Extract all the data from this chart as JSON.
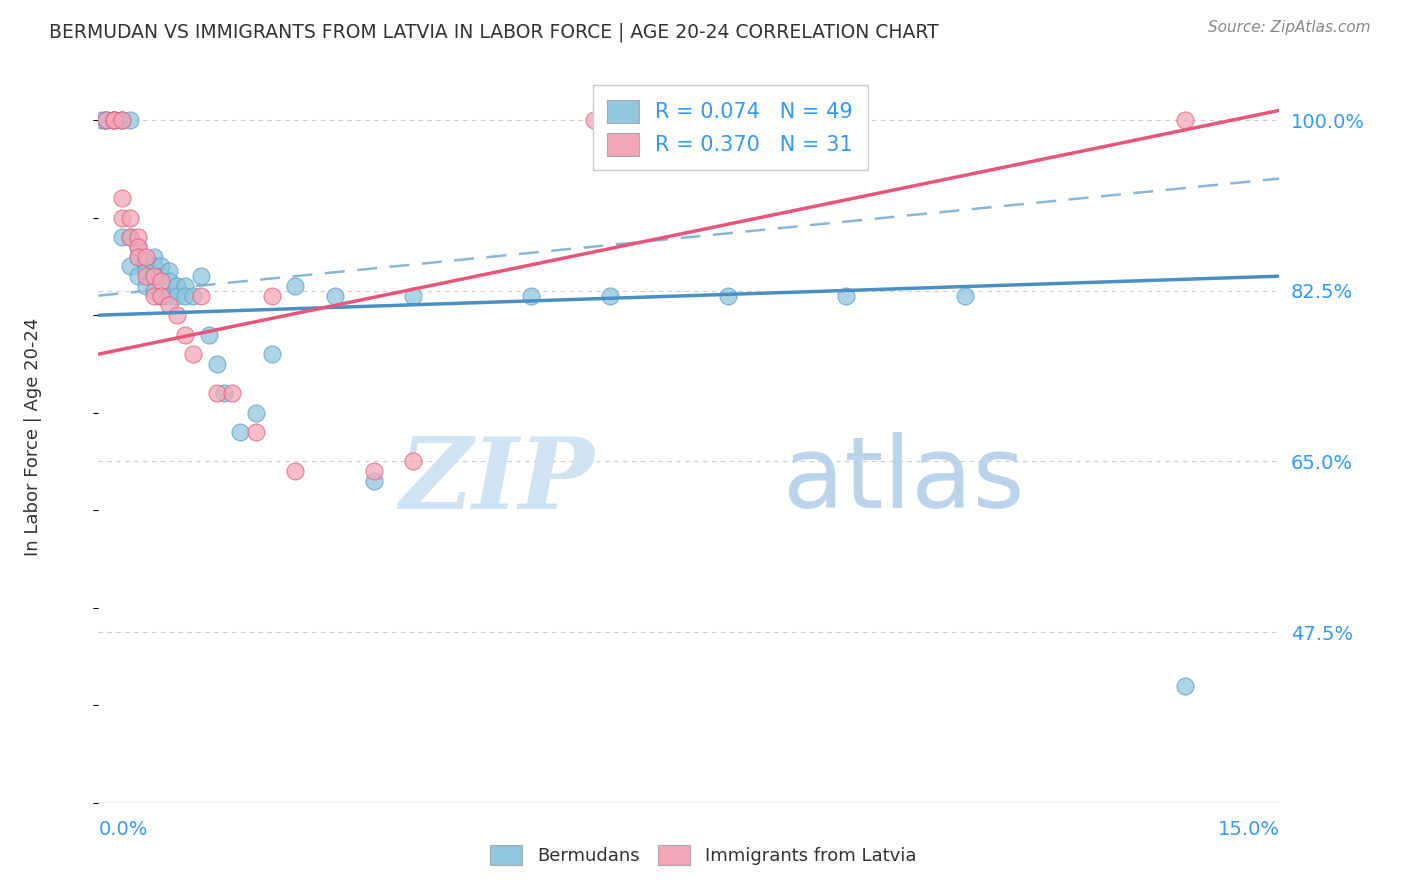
{
  "title": "BERMUDAN VS IMMIGRANTS FROM LATVIA IN LABOR FORCE | AGE 20-24 CORRELATION CHART",
  "source": "Source: ZipAtlas.com",
  "ylabel": "In Labor Force | Age 20-24",
  "xlim": [
    0.0,
    0.15
  ],
  "ylim": [
    0.3,
    1.05
  ],
  "yticks_right": [
    0.475,
    0.65,
    0.825,
    1.0
  ],
  "ytick_right_labels": [
    "47.5%",
    "65.0%",
    "82.5%",
    "100.0%"
  ],
  "blue_color": "#92c5de",
  "pink_color": "#f4a6b8",
  "blue_edge_color": "#5b9ec9",
  "pink_edge_color": "#e0607a",
  "blue_line_color": "#4a90c4",
  "pink_line_color": "#e8547a",
  "legend_text_blue": "R = 0.074   N = 49",
  "legend_text_pink": "R = 0.370   N = 31",
  "legend_label_blue": "Bermudans",
  "legend_label_pink": "Immigrants from Latvia",
  "watermark_zip": "ZIP",
  "watermark_atlas": "atlas",
  "blue_scatter_x": [
    0.0005,
    0.001,
    0.001,
    0.002,
    0.002,
    0.003,
    0.003,
    0.003,
    0.004,
    0.004,
    0.004,
    0.005,
    0.005,
    0.005,
    0.006,
    0.006,
    0.006,
    0.007,
    0.007,
    0.007,
    0.007,
    0.008,
    0.008,
    0.008,
    0.009,
    0.009,
    0.009,
    0.01,
    0.01,
    0.011,
    0.011,
    0.012,
    0.013,
    0.014,
    0.015,
    0.016,
    0.018,
    0.02,
    0.022,
    0.025,
    0.03,
    0.035,
    0.04,
    0.055,
    0.065,
    0.08,
    0.095,
    0.11,
    0.138
  ],
  "blue_scatter_y": [
    1.0,
    1.0,
    1.0,
    1.0,
    1.0,
    1.0,
    1.0,
    0.88,
    1.0,
    0.88,
    0.85,
    0.87,
    0.86,
    0.84,
    0.855,
    0.845,
    0.83,
    0.86,
    0.85,
    0.84,
    0.825,
    0.85,
    0.84,
    0.82,
    0.845,
    0.835,
    0.82,
    0.83,
    0.82,
    0.83,
    0.82,
    0.82,
    0.84,
    0.78,
    0.75,
    0.72,
    0.68,
    0.7,
    0.76,
    0.83,
    0.82,
    0.63,
    0.82,
    0.82,
    0.82,
    0.82,
    0.82,
    0.82,
    0.42
  ],
  "pink_scatter_x": [
    0.001,
    0.002,
    0.002,
    0.003,
    0.003,
    0.003,
    0.004,
    0.004,
    0.005,
    0.005,
    0.005,
    0.006,
    0.006,
    0.007,
    0.007,
    0.008,
    0.008,
    0.009,
    0.01,
    0.011,
    0.012,
    0.013,
    0.015,
    0.017,
    0.02,
    0.022,
    0.025,
    0.035,
    0.04,
    0.063,
    0.138
  ],
  "pink_scatter_y": [
    1.0,
    1.0,
    1.0,
    1.0,
    0.92,
    0.9,
    0.9,
    0.88,
    0.88,
    0.87,
    0.86,
    0.86,
    0.84,
    0.84,
    0.82,
    0.835,
    0.82,
    0.81,
    0.8,
    0.78,
    0.76,
    0.82,
    0.72,
    0.72,
    0.68,
    0.82,
    0.64,
    0.64,
    0.65,
    1.0,
    1.0
  ],
  "blue_line_x0": 0.0,
  "blue_line_x1": 0.15,
  "blue_line_y0": 0.8,
  "blue_line_y1": 0.84,
  "pink_line_x0": 0.0,
  "pink_line_x1": 0.15,
  "pink_line_y0": 0.76,
  "pink_line_y1": 1.01,
  "dash_line_x0": 0.0,
  "dash_line_x1": 0.15,
  "dash_line_y0": 0.82,
  "dash_line_y1": 0.94,
  "grid_color": "#cccccc",
  "text_color": "#3399ff",
  "title_color": "#333333",
  "source_color": "#888888",
  "background_color": "#ffffff"
}
